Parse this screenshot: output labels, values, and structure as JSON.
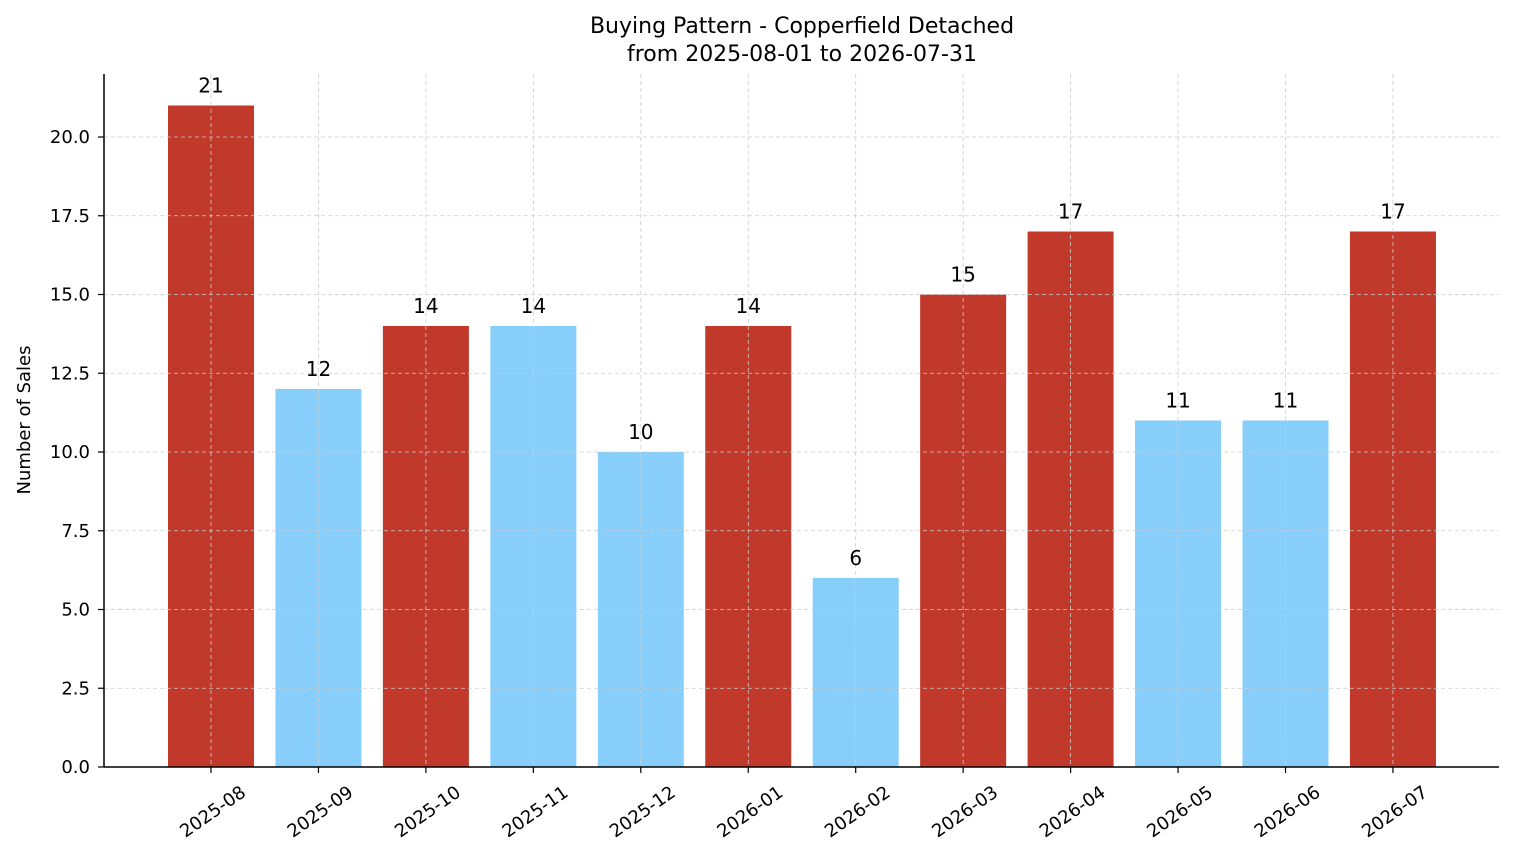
{
  "chart_data": {
    "type": "bar",
    "title": "Buying Pattern - Copperfield Detached",
    "subtitle": "from 2025-08-01 to 2026-07-31",
    "xlabel": "",
    "ylabel": "Number of Sales",
    "ylim": [
      0,
      22
    ],
    "yticks": [
      0.0,
      2.5,
      5.0,
      7.5,
      10.0,
      12.5,
      15.0,
      17.5,
      20.0
    ],
    "ytick_labels": [
      "0.0",
      "2.5",
      "5.0",
      "7.5",
      "10.0",
      "12.5",
      "15.0",
      "17.5",
      "20.0"
    ],
    "grid": true,
    "categories": [
      "2025-08",
      "2025-09",
      "2025-10",
      "2025-11",
      "2025-12",
      "2026-01",
      "2026-02",
      "2026-03",
      "2026-04",
      "2026-05",
      "2026-06",
      "2026-07"
    ],
    "values": [
      21,
      12,
      14,
      14,
      10,
      14,
      6,
      15,
      17,
      11,
      11,
      17
    ],
    "data_labels": [
      "21",
      "12",
      "14",
      "14",
      "10",
      "14",
      "6",
      "15",
      "17",
      "11",
      "11",
      "17"
    ],
    "bar_colors": [
      "#c0392b",
      "#87cefa",
      "#c0392b",
      "#87cefa",
      "#87cefa",
      "#c0392b",
      "#87cefa",
      "#c0392b",
      "#c0392b",
      "#87cefa",
      "#87cefa",
      "#c0392b"
    ]
  }
}
